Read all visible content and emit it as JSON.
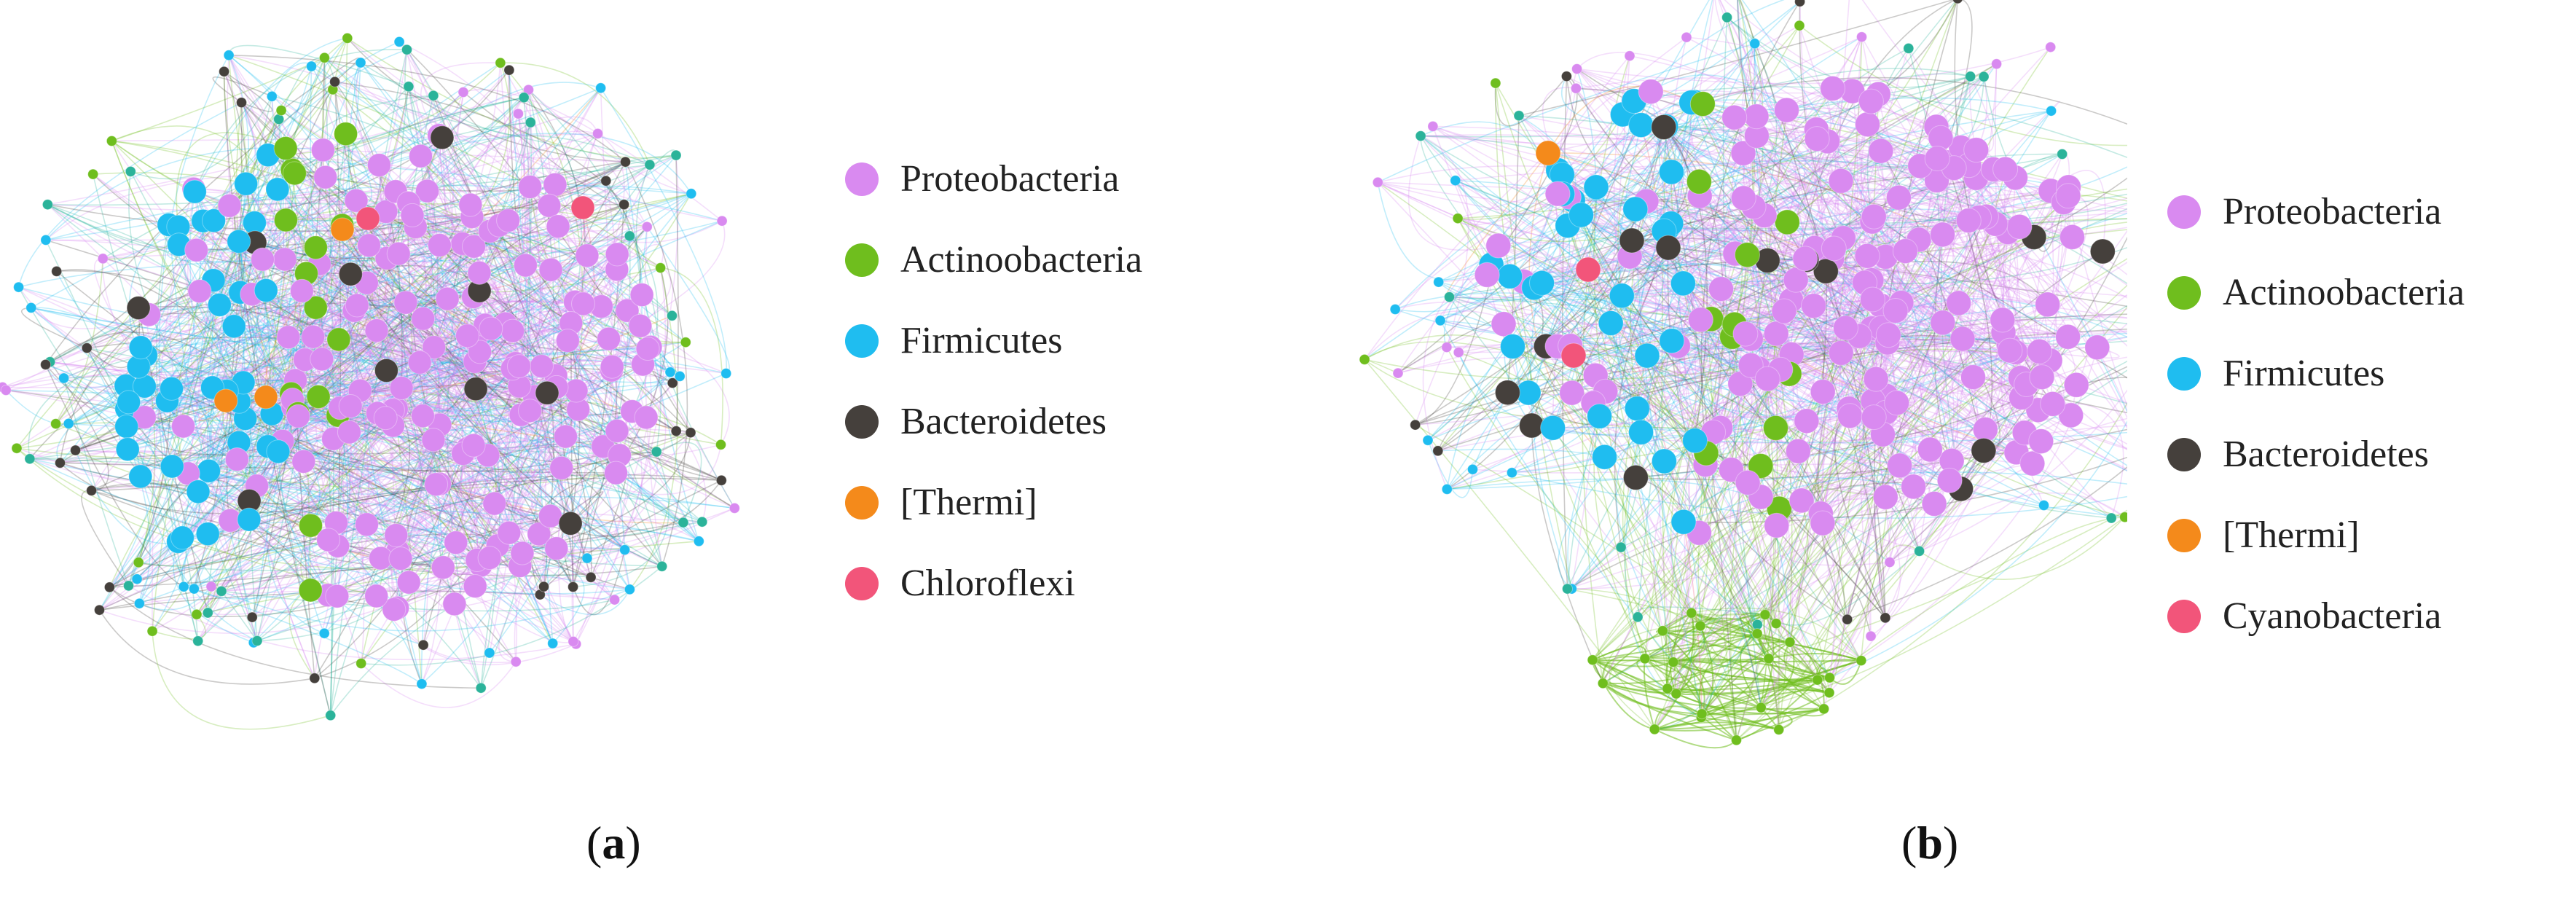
{
  "colors": {
    "Proteobacteria": "#d98af0",
    "Actinoobacteria": "#6fbe1e",
    "Firmicutes": "#1fbdf0",
    "Bacteroidetes": "#45403c",
    "Thermi": "#f48a1b",
    "Chloroflexi": "#f2557a",
    "Cyanobacteria": "#f2557a",
    "mixed": "#2bb39a"
  },
  "panels": [
    {
      "caption": {
        "open": "(",
        "letter": "a",
        "close": ")"
      },
      "legend": [
        {
          "label": "Proteobacteria",
          "color": "#d98af0"
        },
        {
          "label": "Actinoobacteria",
          "color": "#6fbe1e"
        },
        {
          "label": "Firmicutes",
          "color": "#1fbdf0"
        },
        {
          "label": "Bacteroidetes",
          "color": "#45403c"
        },
        {
          "label": "[Thermi]",
          "color": "#f48a1b"
        },
        {
          "label": "Chloroflexi",
          "color": "#f2557a"
        }
      ]
    },
    {
      "caption": {
        "open": "(",
        "letter": "b",
        "close": ")"
      },
      "legend": [
        {
          "label": "Proteobacteria",
          "color": "#d98af0"
        },
        {
          "label": "Actinoobacteria",
          "color": "#6fbe1e"
        },
        {
          "label": "Firmicutes",
          "color": "#1fbdf0"
        },
        {
          "label": "Bacteroidetes",
          "color": "#45403c"
        },
        {
          "label": "[Thermi]",
          "color": "#f48a1b"
        },
        {
          "label": "Cyanobacteria",
          "color": "#f2557a"
        }
      ]
    }
  ]
}
